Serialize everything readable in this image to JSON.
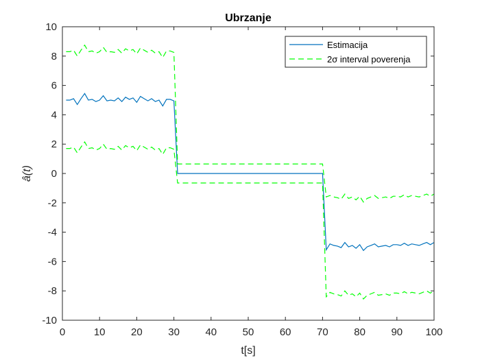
{
  "chart_data": {
    "type": "line",
    "title": "Ubrzanje",
    "xlabel": "t[s]",
    "ylabel": "â(t)",
    "xlim": [
      0,
      100
    ],
    "ylim": [
      -10,
      10
    ],
    "xticks": [
      0,
      10,
      20,
      30,
      40,
      50,
      60,
      70,
      80,
      90,
      100
    ],
    "yticks": [
      -10,
      -8,
      -6,
      -4,
      -2,
      0,
      2,
      4,
      6,
      8,
      10
    ],
    "grid": false,
    "legend_position": "top-right",
    "series": [
      {
        "name": "Estimacija",
        "color": "#0072BD",
        "style": "solid",
        "x": [
          1,
          2,
          3,
          4,
          5,
          6,
          7,
          8,
          9,
          10,
          11,
          12,
          13,
          14,
          15,
          16,
          17,
          18,
          19,
          20,
          21,
          22,
          23,
          24,
          25,
          26,
          27,
          28,
          29,
          30,
          31,
          70,
          71,
          72,
          73,
          74,
          75,
          76,
          77,
          78,
          79,
          80,
          81,
          82,
          83,
          84,
          85,
          86,
          87,
          88,
          89,
          90,
          91,
          92,
          93,
          94,
          95,
          96,
          97,
          98,
          99,
          100
        ],
        "y": [
          5.0,
          5.0,
          5.1,
          4.7,
          5.1,
          5.45,
          5.0,
          5.05,
          4.9,
          5.0,
          5.3,
          4.95,
          5.0,
          4.95,
          5.15,
          4.9,
          5.2,
          5.05,
          5.15,
          4.85,
          5.25,
          5.1,
          4.95,
          5.1,
          4.9,
          5.0,
          4.6,
          5.05,
          5.05,
          4.95,
          0.0,
          0.0,
          -5.2,
          -4.8,
          -4.9,
          -4.95,
          -5.05,
          -4.7,
          -5.0,
          -4.9,
          -5.1,
          -4.85,
          -5.25,
          -5.0,
          -4.9,
          -4.8,
          -5.0,
          -4.95,
          -4.9,
          -5.0,
          -4.85,
          -4.85,
          -4.9,
          -4.75,
          -4.9,
          -4.8,
          -4.85,
          -4.9,
          -4.8,
          -4.7,
          -4.85,
          -4.7
        ]
      },
      {
        "name": "2σ interval poverenja",
        "color": "#00FF00",
        "style": "dashed",
        "x": [
          1,
          2,
          3,
          4,
          5,
          6,
          7,
          8,
          9,
          10,
          11,
          12,
          13,
          14,
          15,
          16,
          17,
          18,
          19,
          20,
          21,
          22,
          23,
          24,
          25,
          26,
          27,
          28,
          29,
          30,
          31,
          70,
          71,
          72,
          73,
          74,
          75,
          76,
          77,
          78,
          79,
          80,
          81,
          82,
          83,
          84,
          85,
          86,
          87,
          88,
          89,
          90,
          91,
          92,
          93,
          94,
          95,
          96,
          97,
          98,
          99,
          100
        ],
        "y": [
          8.3,
          8.3,
          8.4,
          8.0,
          8.4,
          8.75,
          8.3,
          8.35,
          8.2,
          8.3,
          8.6,
          8.25,
          8.3,
          8.25,
          8.45,
          8.2,
          8.5,
          8.35,
          8.45,
          8.15,
          8.55,
          8.4,
          8.25,
          8.4,
          8.2,
          8.3,
          7.9,
          8.35,
          8.35,
          8.25,
          0.65,
          0.65,
          -1.6,
          -1.5,
          -1.6,
          -1.65,
          -1.75,
          -1.4,
          -1.7,
          -1.6,
          -1.8,
          -1.55,
          -1.95,
          -1.7,
          -1.6,
          -1.5,
          -1.7,
          -1.65,
          -1.6,
          -1.7,
          -1.55,
          -1.55,
          -1.6,
          -1.45,
          -1.6,
          -1.5,
          -1.55,
          -1.6,
          -1.5,
          -1.4,
          -1.55,
          -1.4
        ]
      },
      {
        "name": "",
        "color": "#00FF00",
        "style": "dashed",
        "x": [
          1,
          2,
          3,
          4,
          5,
          6,
          7,
          8,
          9,
          10,
          11,
          12,
          13,
          14,
          15,
          16,
          17,
          18,
          19,
          20,
          21,
          22,
          23,
          24,
          25,
          26,
          27,
          28,
          29,
          30,
          31,
          70,
          71,
          72,
          73,
          74,
          75,
          76,
          77,
          78,
          79,
          80,
          81,
          82,
          83,
          84,
          85,
          86,
          87,
          88,
          89,
          90,
          91,
          92,
          93,
          94,
          95,
          96,
          97,
          98,
          99,
          100
        ],
        "y": [
          1.7,
          1.7,
          1.8,
          1.4,
          1.8,
          2.15,
          1.7,
          1.75,
          1.6,
          1.7,
          2.0,
          1.65,
          1.7,
          1.65,
          1.85,
          1.6,
          1.9,
          1.75,
          1.85,
          1.55,
          1.95,
          1.8,
          1.65,
          1.8,
          1.6,
          1.7,
          1.3,
          1.75,
          1.75,
          1.65,
          -0.65,
          -0.65,
          -8.4,
          -8.1,
          -8.2,
          -8.25,
          -8.35,
          -8.0,
          -8.3,
          -8.2,
          -8.4,
          -8.15,
          -8.55,
          -8.3,
          -8.2,
          -8.1,
          -8.3,
          -8.25,
          -8.2,
          -8.3,
          -8.15,
          -8.15,
          -8.2,
          -8.05,
          -8.2,
          -8.1,
          -8.15,
          -8.2,
          -8.1,
          -8.0,
          -8.15,
          -8.0
        ]
      }
    ]
  }
}
